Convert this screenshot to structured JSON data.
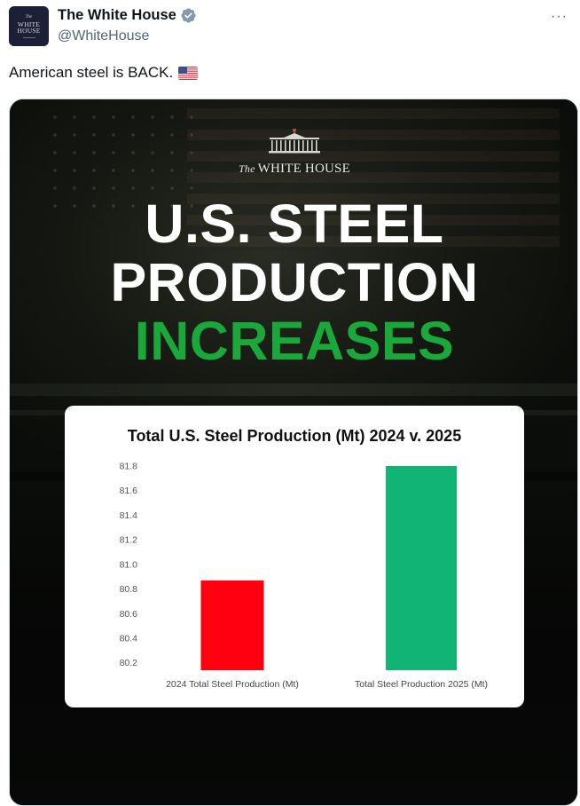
{
  "post": {
    "author": {
      "display_name": "The White House",
      "handle": "@WhiteHouse",
      "verified": true,
      "verified_badge_color": "#829aab",
      "avatar": {
        "line1": "The",
        "line2": "WHITE",
        "line3": "HOUSE",
        "background": "#1b2036"
      }
    },
    "more_icon": "more-horizontal-icon",
    "more_label": "···",
    "text": "American steel is BACK.",
    "emoji": "us-flag-icon"
  },
  "media": {
    "logo": {
      "the": "The",
      "name": "WHITE HOUSE"
    },
    "headline": {
      "line1": "U.S. STEEL",
      "line2": "PRODUCTION",
      "line3": "INCREASES",
      "accent_color": "#1aa83a"
    }
  },
  "chart_data": {
    "type": "bar",
    "title": "Total U.S. Steel Production (Mt) 2024 v. 2025",
    "categories": [
      "2024 Total Steel Production (Mt)",
      "Total Steel Production 2025 (Mt)"
    ],
    "values": [
      80.87,
      81.8
    ],
    "colors": [
      "#ff0011",
      "#10b576"
    ],
    "xlabel": "",
    "ylabel": "",
    "ylim": [
      80.14,
      81.8
    ],
    "yticks": [
      80.2,
      80.4,
      80.6,
      80.8,
      81.0,
      81.2,
      81.4,
      81.6,
      81.8
    ],
    "ytick_labels": [
      "80.2",
      "80.4",
      "80.6",
      "80.8",
      "81.0",
      "81.2",
      "81.4",
      "81.6",
      "81.8"
    ],
    "grid": false,
    "legend": "none"
  }
}
